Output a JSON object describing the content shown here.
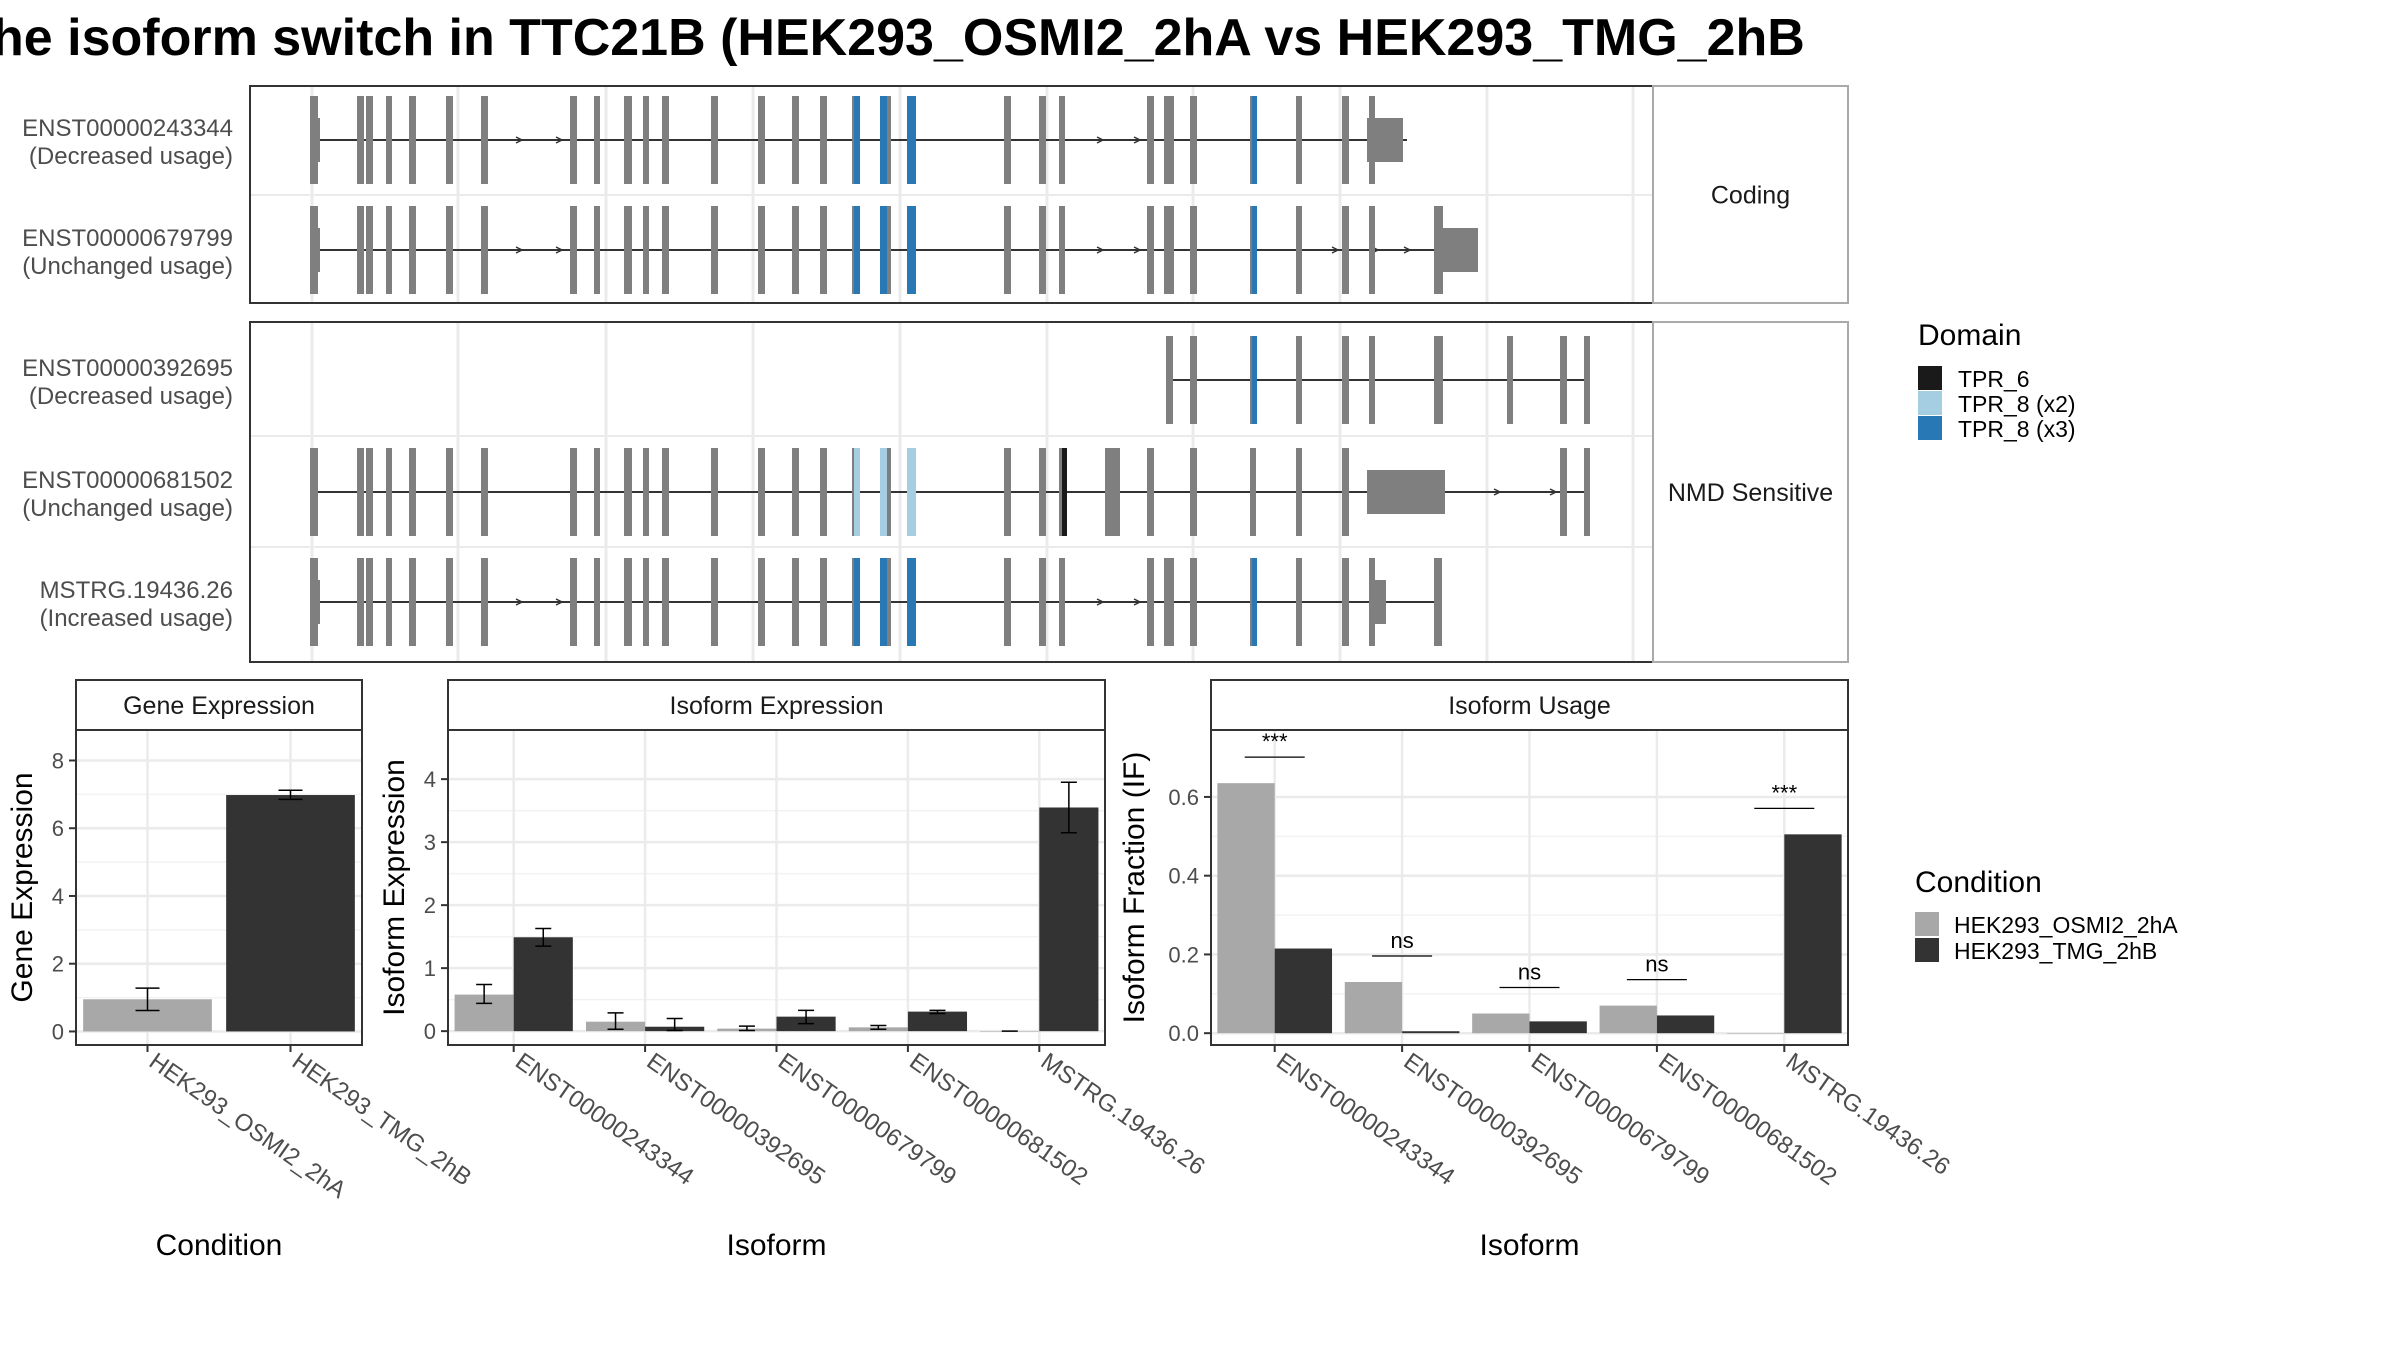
{
  "title": "he isoform switch in TTC21B (HEK293_OSMI2_2hA vs HEK293_TMG_2hB",
  "colors": {
    "cond_a": "#a8a8a8",
    "cond_b": "#333333",
    "exon": "#7f7f7f",
    "tpr6": "#1a1a1a",
    "tpr8_x2": "#a6cee3",
    "tpr8_x3": "#2878b5",
    "grid": "#ebebeb",
    "strip_border": "#aaaaaa"
  },
  "transcript_panels": [
    {
      "label": "Coding",
      "tracks": [
        {
          "name": "ENST00000243344",
          "usage": "(Decreased usage)"
        },
        {
          "name": "ENST00000679799",
          "usage": "(Unchanged usage)"
        }
      ]
    },
    {
      "label": "NMD Sensitive",
      "tracks": [
        {
          "name": "ENST00000392695",
          "usage": "(Decreased usage)"
        },
        {
          "name": "ENST00000681502",
          "usage": "(Unchanged usage)"
        },
        {
          "name": "MSTRG.19436.26",
          "usage": "(Increased usage)"
        }
      ]
    }
  ],
  "domain_legend": {
    "title": "Domain",
    "items": [
      {
        "label": "TPR_6",
        "color": "#1a1a1a"
      },
      {
        "label": "TPR_8 (x2)",
        "color": "#a6cee3"
      },
      {
        "label": "TPR_8 (x3)",
        "color": "#2878b5"
      }
    ]
  },
  "condition_legend": {
    "title": "Condition",
    "items": [
      {
        "label": "HEK293_OSMI2_2hA",
        "color": "#a8a8a8"
      },
      {
        "label": "HEK293_TMG_2hB",
        "color": "#333333"
      }
    ]
  },
  "chart_data": [
    {
      "type": "bar",
      "title": "Gene Expression",
      "xlabel": "Condition",
      "ylabel": "Gene Expression",
      "ylim": [
        -0.4,
        8.9
      ],
      "yticks": [
        0,
        2,
        4,
        6,
        8
      ],
      "categories": [
        "HEK293_OSMI2_2hA",
        "HEK293_TMG_2hB"
      ],
      "values": [
        0.95,
        6.98
      ],
      "errors": [
        [
          0.62,
          1.28
        ],
        [
          6.85,
          7.12
        ]
      ]
    },
    {
      "type": "bar",
      "title": "Isoform Expression",
      "xlabel": "Isoform",
      "ylabel": "Isoform Expression",
      "ylim": [
        -0.22,
        4.78
      ],
      "yticks": [
        0,
        1,
        2,
        3,
        4
      ],
      "categories": [
        "ENST00000243344",
        "ENST00000392695",
        "ENST00000679799",
        "ENST00000681502",
        "MSTRG.19436.26"
      ],
      "series": [
        {
          "name": "HEK293_OSMI2_2hA",
          "values": [
            0.58,
            0.15,
            0.04,
            0.06,
            0.0
          ],
          "errors": [
            [
              0.44,
              0.74
            ],
            [
              0.03,
              0.29
            ],
            [
              0.01,
              0.08
            ],
            [
              0.03,
              0.09
            ],
            [
              0.0,
              0.0
            ]
          ]
        },
        {
          "name": "HEK293_TMG_2hB",
          "values": [
            1.49,
            0.07,
            0.23,
            0.31,
            3.55
          ],
          "errors": [
            [
              1.35,
              1.63
            ],
            [
              0.01,
              0.2
            ],
            [
              0.12,
              0.33
            ],
            [
              0.28,
              0.33
            ],
            [
              3.15,
              3.95
            ]
          ]
        }
      ]
    },
    {
      "type": "bar",
      "title": "Isoform Usage",
      "xlabel": "Isoform",
      "ylabel": "Isoform Fraction (IF)",
      "ylim": [
        -0.03,
        0.77
      ],
      "yticks": [
        0.0,
        0.2,
        0.4,
        0.6
      ],
      "categories": [
        "ENST00000243344",
        "ENST00000392695",
        "ENST00000679799",
        "ENST00000681502",
        "MSTRG.19436.26"
      ],
      "series": [
        {
          "name": "HEK293_OSMI2_2hA",
          "values": [
            0.635,
            0.13,
            0.05,
            0.07,
            0.0
          ]
        },
        {
          "name": "HEK293_TMG_2hB",
          "values": [
            0.215,
            0.005,
            0.03,
            0.045,
            0.505
          ]
        }
      ],
      "significance": [
        "***",
        "ns",
        "ns",
        "ns",
        "***"
      ]
    }
  ]
}
